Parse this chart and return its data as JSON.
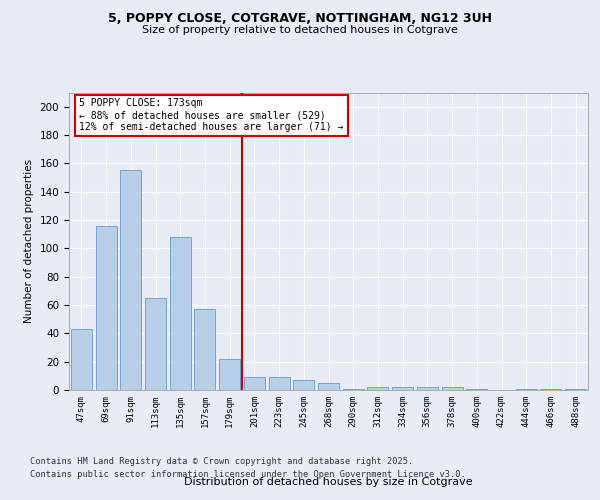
{
  "title": "5, POPPY CLOSE, COTGRAVE, NOTTINGHAM, NG12 3UH",
  "subtitle": "Size of property relative to detached houses in Cotgrave",
  "xlabel": "Distribution of detached houses by size in Cotgrave",
  "ylabel": "Number of detached properties",
  "categories": [
    "47sqm",
    "69sqm",
    "91sqm",
    "113sqm",
    "135sqm",
    "157sqm",
    "179sqm",
    "201sqm",
    "223sqm",
    "245sqm",
    "268sqm",
    "290sqm",
    "312sqm",
    "334sqm",
    "356sqm",
    "378sqm",
    "400sqm",
    "422sqm",
    "444sqm",
    "466sqm",
    "488sqm"
  ],
  "values": [
    43,
    116,
    155,
    65,
    108,
    57,
    22,
    9,
    9,
    7,
    5,
    1,
    2,
    2,
    2,
    2,
    1,
    0,
    1,
    1,
    1
  ],
  "bar_color": "#b8cfe8",
  "bar_edge_color": "#6699cc",
  "background_color": "#e8edf5",
  "plot_bg_color": "#e8edf5",
  "grid_color": "#ffffff",
  "vline_x_index": 6,
  "vline_color": "#cc0000",
  "annotation_text": "5 POPPY CLOSE: 173sqm\n← 88% of detached houses are smaller (529)\n12% of semi-detached houses are larger (71) →",
  "annotation_box_color": "#cc0000",
  "ylim": [
    0,
    210
  ],
  "yticks": [
    0,
    20,
    40,
    60,
    80,
    100,
    120,
    140,
    160,
    180,
    200
  ],
  "footer_line1": "Contains HM Land Registry data © Crown copyright and database right 2025.",
  "footer_line2": "Contains public sector information licensed under the Open Government Licence v3.0."
}
